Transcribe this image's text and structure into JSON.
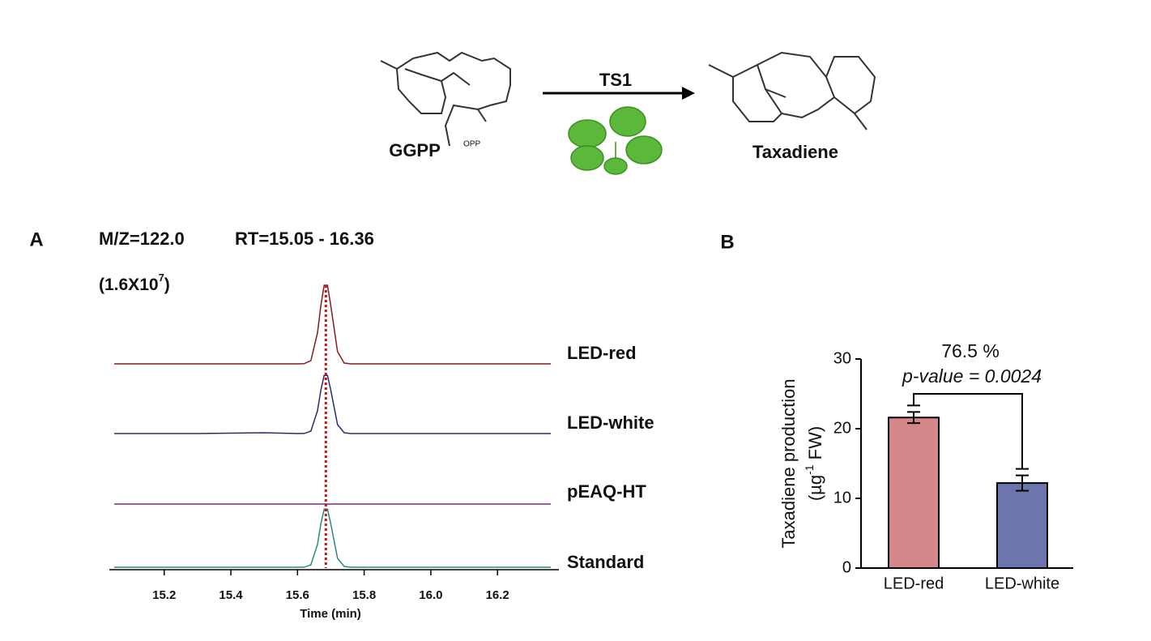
{
  "scheme": {
    "substrate": "GGPP",
    "substrate_group": "OPP",
    "enzyme": "TS1",
    "product": "Taxadiene"
  },
  "chart_data": [
    {
      "type": "line",
      "panel": "A",
      "title": "M/Z=122.0",
      "subtitle": "RT=15.05 - 16.36",
      "scale_label": [
        "(1.6X10",
        "7",
        ")"
      ],
      "x_label": "Time (min)",
      "x": [
        15.05,
        15.3,
        15.5,
        15.6,
        15.62,
        15.64,
        15.66,
        15.67,
        15.68,
        15.69,
        15.7,
        15.72,
        15.74,
        15.76,
        15.8,
        16.0,
        16.36
      ],
      "xlim": [
        15.05,
        16.36
      ],
      "xticks": [
        15.2,
        15.4,
        15.6,
        15.8,
        {
          "value": 16,
          "label": "16.0"
        },
        16.2
      ],
      "marker_x": 15.685,
      "marker_color": "#d01010",
      "series": [
        {
          "name": "LED-red",
          "color": "#8b1a1a",
          "values": [
            0,
            0,
            0,
            0,
            0.002,
            0.04,
            0.38,
            0.71,
            0.96,
            0.96,
            0.71,
            0.15,
            0.01,
            0,
            0,
            0,
            0
          ]
        },
        {
          "name": "LED-white",
          "color": "#2c2c6e",
          "values": [
            0,
            0,
            0.01,
            0,
            0.001,
            0.03,
            0.28,
            0.53,
            0.71,
            0.71,
            0.53,
            0.11,
            0.01,
            0,
            0,
            0,
            0
          ]
        },
        {
          "name": "pEAQ-HT",
          "color": "#7b2a7b",
          "values": [
            0,
            0,
            0,
            0,
            0,
            0,
            0,
            0,
            0,
            0,
            0,
            0,
            0,
            0,
            0,
            0,
            0
          ]
        },
        {
          "name": "Standard",
          "color": "#2a8a7a",
          "values": [
            0,
            0,
            0,
            0,
            0.001,
            0.03,
            0.28,
            0.53,
            0.71,
            0.71,
            0.53,
            0.11,
            0.01,
            0,
            0,
            0,
            0
          ]
        }
      ]
    },
    {
      "type": "bar",
      "panel": "B",
      "y_label": "Taxadiene production",
      "y_label_unit": [
        "(µg",
        "-1",
        " FW)"
      ],
      "categories": [
        "LED-red",
        "LED-white"
      ],
      "values": [
        21.6,
        12.2
      ],
      "errors": [
        0.8,
        1.1
      ],
      "colors": [
        "#d4868a",
        "#6c76ad"
      ],
      "ylim": [
        0,
        30
      ],
      "yticks": [
        0,
        10,
        20,
        30
      ],
      "annotation": "76.5 %",
      "p_value": "p-value = 0.0024"
    }
  ]
}
